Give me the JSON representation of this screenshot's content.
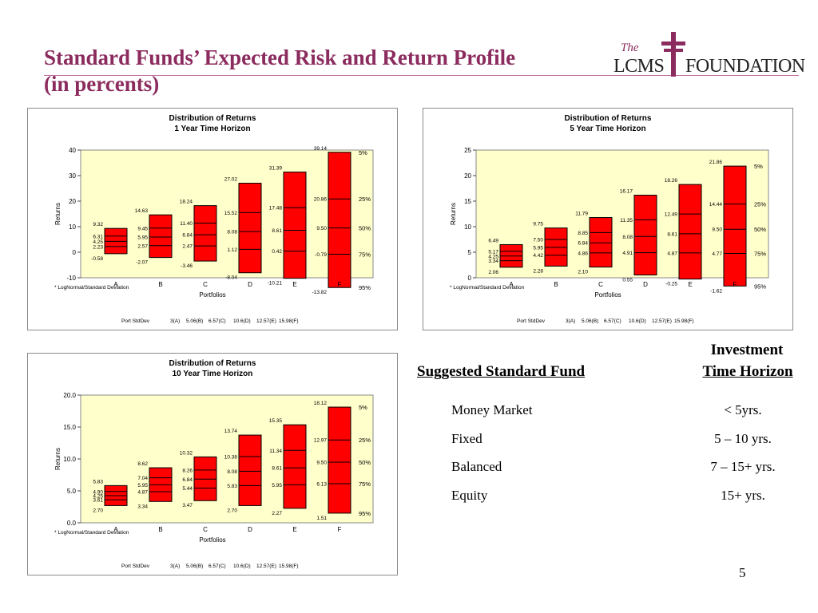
{
  "slide": {
    "title_line1": "Standard Funds’ Expected Risk and Return Profile",
    "title_line2": "(in percents)",
    "page_number": "5"
  },
  "logo": {
    "the": "The",
    "lcms": "LCMS",
    "foundation": "FOUNDATION"
  },
  "colors": {
    "title": "#8b2b5e",
    "plot_bg": "#ffffcc",
    "bar_fill": "#ff0000",
    "bar_stroke": "#000000"
  },
  "funds_table": {
    "header_fund": "Suggested Standard Fund",
    "header_investment": "Investment",
    "header_horizon": "Time Horizon",
    "rows": [
      {
        "fund": "Money Market",
        "horizon": "< 5yrs."
      },
      {
        "fund": "Fixed",
        "horizon": "5 – 10 yrs."
      },
      {
        "fund": "Balanced",
        "horizon": "7 – 15+ yrs."
      },
      {
        "fund": "Equity",
        "horizon": "15+ yrs."
      }
    ]
  },
  "chart_data": [
    {
      "type": "box",
      "title": "Distribution of Returns",
      "subtitle": "1 Year Time Horizon",
      "xlabel": "Portfolios",
      "ylabel": "Returns",
      "ylim": [
        -10,
        40
      ],
      "yticks": [
        -10,
        0,
        10,
        20,
        30,
        40
      ],
      "categories": [
        "A",
        "B",
        "C",
        "D",
        "E",
        "F"
      ],
      "percentiles": [
        "5%",
        "25%",
        "50%",
        "75%",
        "95%"
      ],
      "values": [
        [
          9.32,
          6.31,
          4.25,
          2.23,
          -0.58
        ],
        [
          14.63,
          9.45,
          5.95,
          2.57,
          -2.07
        ],
        [
          18.24,
          11.4,
          6.84,
          2.47,
          -3.46
        ],
        [
          27.02,
          15.52,
          8.08,
          1.12,
          -8.04
        ],
        [
          31.39,
          17.48,
          8.61,
          0.42,
          -10.21
        ],
        [
          39.14,
          20.86,
          9.5,
          -0.79,
          -13.82
        ]
      ],
      "footnote": "* LogNormal/Standard Deviation",
      "stddev_row": [
        "Port StdDev",
        "3(A)",
        "5.06(B)",
        "6.57(C)",
        "10.6(D)",
        "12.57(E)",
        "15.98(F)"
      ]
    },
    {
      "type": "box",
      "title": "Distribution of Returns",
      "subtitle": "5 Year Time Horizon",
      "xlabel": "Portfolios",
      "ylabel": "Returns",
      "ylim": [
        0,
        25
      ],
      "yticks": [
        0,
        5,
        10,
        15,
        20,
        25
      ],
      "categories": [
        "A",
        "B",
        "C",
        "D",
        "E",
        "F"
      ],
      "percentiles": [
        "5%",
        "25%",
        "50%",
        "75%",
        "95%"
      ],
      "values": [
        [
          6.49,
          5.17,
          4.25,
          3.34,
          2.06
        ],
        [
          9.75,
          7.5,
          5.95,
          4.42,
          2.28
        ],
        [
          11.79,
          8.85,
          6.84,
          4.86,
          2.1
        ],
        [
          16.17,
          11.35,
          8.08,
          4.91,
          0.55
        ],
        [
          18.26,
          12.49,
          8.61,
          4.87,
          -0.25
        ],
        [
          21.86,
          14.44,
          9.5,
          4.77,
          -1.62
        ]
      ],
      "footnote": "* LogNormal/Standard Deviation",
      "stddev_row": [
        "Port StdDev",
        "3(A)",
        "5.06(B)",
        "6.57(C)",
        "10.6(D)",
        "12.57(E)",
        "15.98(F)"
      ]
    },
    {
      "type": "box",
      "title": "Distribution of Returns",
      "subtitle": "10 Year Time Horizon",
      "xlabel": "Portfolios",
      "ylabel": "Returns",
      "ylim": [
        0,
        20
      ],
      "yticks": [
        "0.0",
        "5.0",
        "10.0",
        "15.0",
        "20.0"
      ],
      "categories": [
        "A",
        "B",
        "C",
        "D",
        "E",
        "F"
      ],
      "percentiles": [
        "5%",
        "25%",
        "50%",
        "75%",
        "95%"
      ],
      "values": [
        [
          5.83,
          4.9,
          4.25,
          3.61,
          2.7
        ],
        [
          8.62,
          7.04,
          5.95,
          4.87,
          3.34
        ],
        [
          10.32,
          8.26,
          6.84,
          5.44,
          3.47
        ],
        [
          13.74,
          10.38,
          8.08,
          5.83,
          2.7
        ],
        [
          15.35,
          11.34,
          8.61,
          5.95,
          2.27
        ],
        [
          18.12,
          12.97,
          9.5,
          6.13,
          1.51
        ]
      ],
      "footnote": "* LogNormal/Standard Deviation",
      "stddev_row": [
        "Port StdDev",
        "3(A)",
        "5.06(B)",
        "6.57(C)",
        "10.6(D)",
        "12.57(E)",
        "15.98(F)"
      ]
    }
  ]
}
